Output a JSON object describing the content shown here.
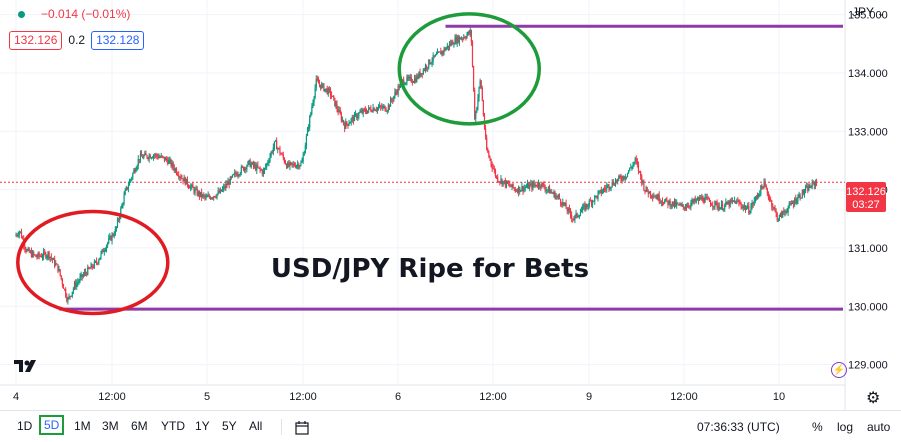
{
  "header": {
    "change": "−0.014 (−0.01%)",
    "bid": "132.126",
    "spread": "0.2",
    "ask": "132.128"
  },
  "currency": "JPY",
  "chevron_icon": "chevron-down-icon",
  "annotation": "USD/JPY Ripe for Bets",
  "colors": {
    "up": "#089981",
    "down": "#f23645",
    "line": "#8e3aa7",
    "circle_green": "#1e9b3a",
    "circle_red": "#e01b22",
    "last_price": "#f23645"
  },
  "toolbar": {
    "timeframes": [
      "1D",
      "5D",
      "1M",
      "3M",
      "6M",
      "YTD",
      "1Y",
      "5Y",
      "All"
    ],
    "active": "5D",
    "time": "07:36:33 (UTC)",
    "percent": "%",
    "log": "log",
    "auto": "auto"
  },
  "chart_data": {
    "type": "candlestick",
    "y_axis": {
      "ticks": [
        "129.000",
        "130.000",
        "131.000",
        "132.000",
        "133.000",
        "134.000",
        "135.000"
      ],
      "ylim": [
        128.65,
        135.25
      ]
    },
    "x_axis": {
      "ticks": [
        "4",
        "12:00",
        "5",
        "12:00",
        "6",
        "12:00",
        "9",
        "12:00",
        "10"
      ]
    },
    "last_price": {
      "value": 132.126,
      "label": "132.126",
      "countdown": "03:27"
    },
    "horizontal_lines": [
      {
        "y": 134.8,
        "from_tick": 4.5
      },
      {
        "y": 129.95,
        "from_tick": 0.45
      }
    ],
    "circles": [
      {
        "color": "red",
        "x_center_tick": 0.8,
        "y_center": 130.75
      },
      {
        "color": "green",
        "x_center_tick": 4.75,
        "y_center": 134.07
      }
    ],
    "path": [
      [
        0.0,
        131.2
      ],
      [
        0.05,
        131.3
      ],
      [
        0.12,
        130.95
      ],
      [
        0.22,
        130.85
      ],
      [
        0.35,
        130.9
      ],
      [
        0.45,
        130.65
      ],
      [
        0.55,
        130.1
      ],
      [
        0.62,
        130.35
      ],
      [
        0.72,
        130.55
      ],
      [
        0.85,
        130.75
      ],
      [
        0.95,
        131.05
      ],
      [
        1.05,
        131.3
      ],
      [
        1.15,
        131.95
      ],
      [
        1.3,
        132.55
      ],
      [
        1.45,
        132.6
      ],
      [
        1.6,
        132.5
      ],
      [
        1.75,
        132.2
      ],
      [
        1.9,
        131.95
      ],
      [
        2.0,
        131.85
      ],
      [
        2.15,
        131.95
      ],
      [
        2.3,
        132.25
      ],
      [
        2.45,
        132.45
      ],
      [
        2.6,
        132.3
      ],
      [
        2.72,
        132.8
      ],
      [
        2.85,
        132.4
      ],
      [
        3.0,
        132.45
      ],
      [
        3.15,
        133.85
      ],
      [
        3.3,
        133.65
      ],
      [
        3.45,
        133.1
      ],
      [
        3.6,
        133.3
      ],
      [
        3.75,
        133.4
      ],
      [
        3.9,
        133.4
      ],
      [
        4.05,
        133.85
      ],
      [
        4.2,
        133.9
      ],
      [
        4.35,
        134.2
      ],
      [
        4.5,
        134.4
      ],
      [
        4.6,
        134.55
      ],
      [
        4.7,
        134.62
      ],
      [
        4.78,
        134.7
      ],
      [
        4.82,
        133.2
      ],
      [
        4.88,
        133.9
      ],
      [
        4.94,
        132.7
      ],
      [
        5.05,
        132.2
      ],
      [
        5.25,
        132.0
      ],
      [
        5.5,
        132.1
      ],
      [
        5.7,
        131.85
      ],
      [
        5.85,
        131.5
      ],
      [
        6.0,
        131.75
      ],
      [
        6.2,
        132.05
      ],
      [
        6.4,
        132.25
      ],
      [
        6.5,
        132.5
      ],
      [
        6.6,
        132.0
      ],
      [
        6.8,
        131.8
      ],
      [
        7.0,
        131.7
      ],
      [
        7.2,
        131.85
      ],
      [
        7.4,
        131.7
      ],
      [
        7.55,
        131.8
      ],
      [
        7.7,
        131.65
      ],
      [
        7.85,
        132.1
      ],
      [
        8.0,
        131.5
      ],
      [
        8.2,
        131.85
      ],
      [
        8.3,
        132.0
      ],
      [
        8.4,
        132.126
      ]
    ]
  }
}
